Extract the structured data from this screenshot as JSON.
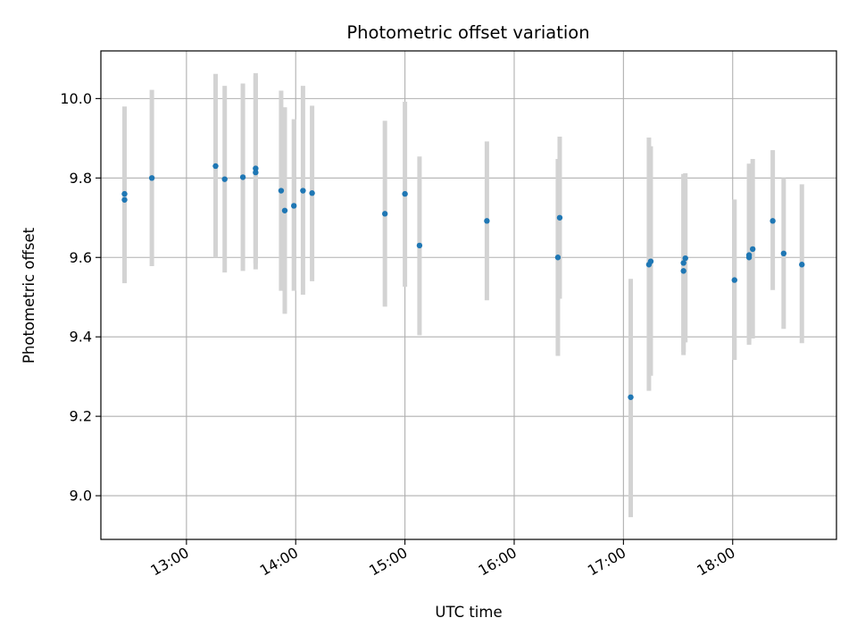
{
  "chart_data": {
    "type": "scatter",
    "title": "Photometric offset variation",
    "xlabel": "UTC time",
    "ylabel": "Photometric offset",
    "x_axis": "time",
    "xlim": [
      "12:13",
      "18:57"
    ],
    "ylim": [
      8.89,
      10.12
    ],
    "x_ticks": [
      "13:00",
      "14:00",
      "15:00",
      "16:00",
      "17:00",
      "18:00"
    ],
    "y_ticks": [
      "9.0",
      "9.2",
      "9.4",
      "9.6",
      "9.8",
      "10.0"
    ],
    "y_tick_values": [
      9.0,
      9.2,
      9.4,
      9.6,
      9.8,
      10.0
    ],
    "grid": true,
    "marker_color": "#1f77b4",
    "errorbar_color": "#d3d3d3",
    "points": [
      {
        "time": "12:26",
        "y": 9.76,
        "lo": 9.54,
        "hi": 9.98
      },
      {
        "time": "12:26",
        "y": 9.745,
        "lo": 9.535,
        "hi": 9.96
      },
      {
        "time": "12:41",
        "y": 9.8,
        "lo": 9.578,
        "hi": 10.022
      },
      {
        "time": "13:16",
        "y": 9.83,
        "lo": 9.6,
        "hi": 10.062
      },
      {
        "time": "13:21",
        "y": 9.797,
        "lo": 9.562,
        "hi": 10.032
      },
      {
        "time": "13:31",
        "y": 9.802,
        "lo": 9.566,
        "hi": 10.038
      },
      {
        "time": "13:38",
        "y": 9.824,
        "lo": 9.585,
        "hi": 10.064
      },
      {
        "time": "13:38",
        "y": 9.814,
        "lo": 9.57,
        "hi": 10.058
      },
      {
        "time": "13:52",
        "y": 9.768,
        "lo": 9.516,
        "hi": 10.02
      },
      {
        "time": "13:54",
        "y": 9.718,
        "lo": 9.458,
        "hi": 9.978
      },
      {
        "time": "13:59",
        "y": 9.73,
        "lo": 9.516,
        "hi": 9.948
      },
      {
        "time": "14:04",
        "y": 9.768,
        "lo": 9.506,
        "hi": 10.032
      },
      {
        "time": "14:09",
        "y": 9.762,
        "lo": 9.54,
        "hi": 9.982
      },
      {
        "time": "14:49",
        "y": 9.71,
        "lo": 9.476,
        "hi": 9.944
      },
      {
        "time": "15:00",
        "y": 9.76,
        "lo": 9.526,
        "hi": 9.992
      },
      {
        "time": "15:08",
        "y": 9.63,
        "lo": 9.404,
        "hi": 9.854
      },
      {
        "time": "15:45",
        "y": 9.692,
        "lo": 9.492,
        "hi": 9.892
      },
      {
        "time": "16:24",
        "y": 9.6,
        "lo": 9.352,
        "hi": 9.848
      },
      {
        "time": "16:25",
        "y": 9.7,
        "lo": 9.496,
        "hi": 9.904
      },
      {
        "time": "17:04",
        "y": 9.248,
        "lo": 8.946,
        "hi": 9.546
      },
      {
        "time": "17:14",
        "y": 9.582,
        "lo": 9.264,
        "hi": 9.902
      },
      {
        "time": "17:15",
        "y": 9.59,
        "lo": 9.302,
        "hi": 9.88
      },
      {
        "time": "17:33",
        "y": 9.586,
        "lo": 9.362,
        "hi": 9.81
      },
      {
        "time": "17:33",
        "y": 9.566,
        "lo": 9.354,
        "hi": 9.81
      },
      {
        "time": "17:34",
        "y": 9.598,
        "lo": 9.386,
        "hi": 9.812
      },
      {
        "time": "18:01",
        "y": 9.543,
        "lo": 9.342,
        "hi": 9.746
      },
      {
        "time": "18:09",
        "y": 9.606,
        "lo": 9.38,
        "hi": 9.836
      },
      {
        "time": "18:09",
        "y": 9.6,
        "lo": 9.386,
        "hi": 9.818
      },
      {
        "time": "18:11",
        "y": 9.621,
        "lo": 9.396,
        "hi": 9.848
      },
      {
        "time": "18:22",
        "y": 9.692,
        "lo": 9.518,
        "hi": 9.87
      },
      {
        "time": "18:28",
        "y": 9.61,
        "lo": 9.42,
        "hi": 9.8
      },
      {
        "time": "18:38",
        "y": 9.582,
        "lo": 9.384,
        "hi": 9.784
      }
    ]
  }
}
